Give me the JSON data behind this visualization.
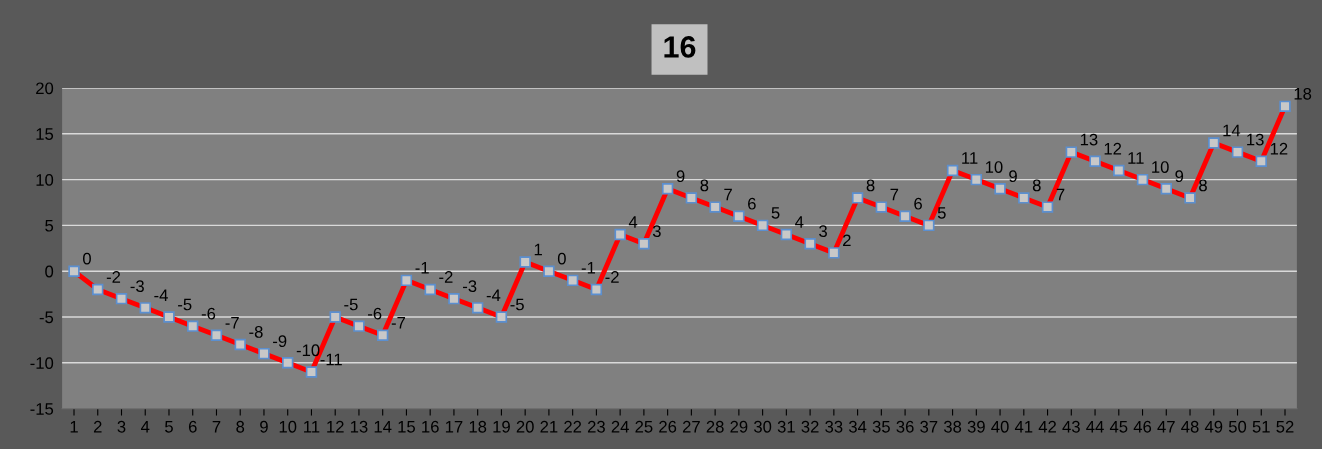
{
  "chart_data": {
    "type": "line",
    "title": "16",
    "categories": [
      "1",
      "2",
      "3",
      "4",
      "5",
      "6",
      "7",
      "8",
      "9",
      "10",
      "11",
      "12",
      "13",
      "14",
      "15",
      "16",
      "17",
      "18",
      "19",
      "20",
      "21",
      "22",
      "23",
      "24",
      "25",
      "26",
      "27",
      "28",
      "29",
      "30",
      "31",
      "32",
      "33",
      "34",
      "35",
      "36",
      "37",
      "38",
      "39",
      "40",
      "41",
      "42",
      "43",
      "44",
      "45",
      "46",
      "47",
      "48",
      "49",
      "50",
      "51",
      "52"
    ],
    "series": [
      {
        "color": "#ff0000",
        "values": [
          0,
          -2,
          -3,
          -4,
          -5,
          -6,
          -7,
          -8,
          -9,
          -10,
          -11,
          -5,
          -6,
          -7,
          -1,
          -2,
          -3,
          -4,
          -5,
          1,
          0,
          -1,
          -2,
          4,
          3,
          9,
          8,
          7,
          6,
          5,
          4,
          3,
          2,
          8,
          7,
          6,
          5,
          11,
          10,
          9,
          8,
          7,
          13,
          12,
          11,
          10,
          9,
          8,
          14,
          13,
          12,
          18
        ]
      }
    ],
    "ylim": [
      -15,
      20
    ],
    "yticks": [
      -15,
      -10,
      -5,
      0,
      5,
      10,
      15,
      20
    ],
    "grid": "y",
    "legend": false,
    "data_labels": true,
    "marker": "square",
    "line_style": "solid"
  }
}
